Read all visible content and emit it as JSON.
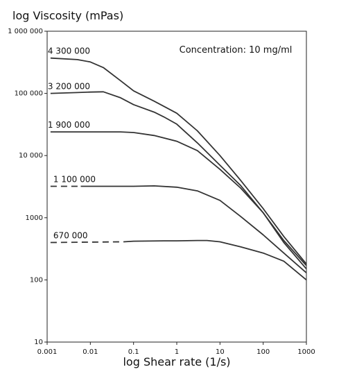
{
  "chart_data": {
    "type": "line",
    "title": "",
    "ylabel": "log Viscosity (mPas)",
    "xlabel": "log Shear rate (1/s)",
    "x_scale": "log",
    "y_scale": "log",
    "xlim": [
      0.001,
      1000
    ],
    "ylim": [
      10,
      1000000
    ],
    "grid": false,
    "legend": "none",
    "annotation": "Concentration: 10 mg/ml",
    "x_ticks": [
      {
        "value": 0.001,
        "label": "0.001"
      },
      {
        "value": 0.01,
        "label": "0.01"
      },
      {
        "value": 0.1,
        "label": "0.1"
      },
      {
        "value": 1,
        "label": "1"
      },
      {
        "value": 10,
        "label": "10"
      },
      {
        "value": 100,
        "label": "100"
      },
      {
        "value": 1000,
        "label": "1000"
      }
    ],
    "y_ticks": [
      {
        "value": 10,
        "label": "10"
      },
      {
        "value": 100,
        "label": "100"
      },
      {
        "value": 1000,
        "label": "1000"
      },
      {
        "value": 10000,
        "label": "10 000"
      },
      {
        "value": 100000,
        "label": "100 000"
      },
      {
        "value": 1000000,
        "label": "1 000 000"
      }
    ],
    "series": [
      {
        "name": "4 300 000",
        "points": [
          [
            0.0012,
            370000
          ],
          [
            0.005,
            350000
          ],
          [
            0.01,
            320000
          ],
          [
            0.02,
            260000
          ],
          [
            0.05,
            160000
          ],
          [
            0.1,
            110000
          ],
          [
            0.3,
            75000
          ],
          [
            0.6,
            58000
          ],
          [
            1,
            48000
          ],
          [
            3,
            25000
          ],
          [
            10,
            10000
          ],
          [
            30,
            4000
          ],
          [
            100,
            1400
          ],
          [
            300,
            500
          ],
          [
            1000,
            180
          ]
        ]
      },
      {
        "name": "3 200 000",
        "points": [
          [
            0.0012,
            100000
          ],
          [
            0.005,
            103000
          ],
          [
            0.01,
            105000
          ],
          [
            0.02,
            106000
          ],
          [
            0.05,
            85000
          ],
          [
            0.1,
            66000
          ],
          [
            0.3,
            50000
          ],
          [
            0.5,
            42000
          ],
          [
            1,
            32000
          ],
          [
            3,
            16000
          ],
          [
            10,
            7000
          ],
          [
            30,
            3300
          ],
          [
            100,
            1200
          ],
          [
            300,
            430
          ],
          [
            1000,
            170
          ]
        ]
      },
      {
        "name": "1 900 000",
        "points": [
          [
            0.0012,
            24000
          ],
          [
            0.01,
            24000
          ],
          [
            0.05,
            24000
          ],
          [
            0.1,
            23500
          ],
          [
            0.3,
            21000
          ],
          [
            1,
            17000
          ],
          [
            3,
            12000
          ],
          [
            10,
            6000
          ],
          [
            30,
            3000
          ],
          [
            100,
            1200
          ],
          [
            300,
            400
          ],
          [
            1000,
            150
          ]
        ]
      },
      {
        "name": "1 100 000",
        "dashed_until": 0.006,
        "points": [
          [
            0.0012,
            3200
          ],
          [
            0.006,
            3200
          ],
          [
            0.05,
            3200
          ],
          [
            0.1,
            3200
          ],
          [
            0.3,
            3250
          ],
          [
            1,
            3100
          ],
          [
            3,
            2700
          ],
          [
            10,
            1900
          ],
          [
            30,
            1050
          ],
          [
            100,
            530
          ],
          [
            300,
            270
          ],
          [
            1000,
            130
          ]
        ]
      },
      {
        "name": "670 000",
        "dashed_until": 0.06,
        "points": [
          [
            0.0012,
            400
          ],
          [
            0.06,
            410
          ],
          [
            0.1,
            420
          ],
          [
            0.5,
            425
          ],
          [
            1,
            425
          ],
          [
            3,
            430
          ],
          [
            5,
            430
          ],
          [
            10,
            410
          ],
          [
            30,
            340
          ],
          [
            100,
            270
          ],
          [
            300,
            200
          ],
          [
            1000,
            100
          ]
        ]
      }
    ]
  }
}
